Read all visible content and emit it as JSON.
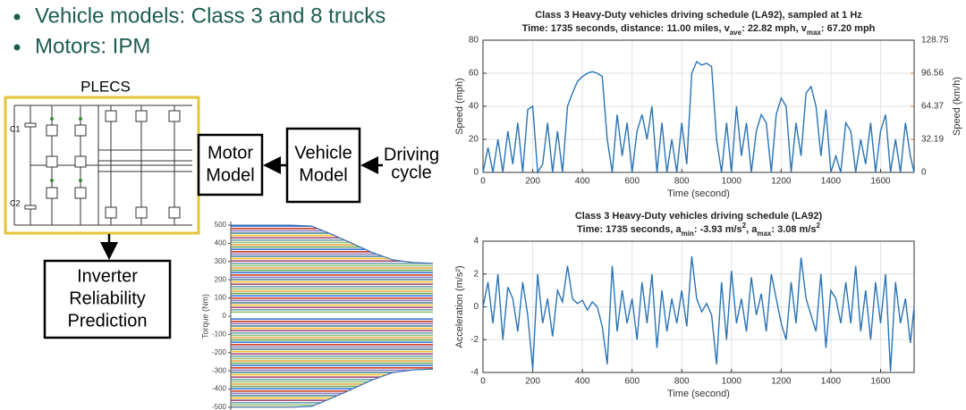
{
  "bullets": [
    "Vehicle models: Class 3 and 8 trucks",
    "Motors: IPM"
  ],
  "diagram": {
    "plecs": {
      "label": "PLECS",
      "components": [
        "C1",
        "C2"
      ]
    },
    "nodes": [
      {
        "lines": [
          "Motor",
          "Model"
        ]
      },
      {
        "lines": [
          "Vehicle",
          "Model"
        ]
      },
      {
        "lines": [
          "Driving",
          "cycle"
        ]
      },
      {
        "lines": [
          "Inverter",
          "Reliability",
          "Prediction"
        ]
      }
    ]
  },
  "chart_data": [
    {
      "type": "area",
      "ylabel": "Torque (Nm)",
      "categories": [
        null,
        null,
        null,
        null,
        null,
        null,
        null,
        null,
        null,
        null,
        null
      ],
      "series": [
        {
          "color": "#3b6fb0",
          "values": [
            500,
            500,
            500,
            500,
            495,
            450,
            400,
            350,
            310,
            295,
            290
          ]
        },
        {
          "color": "#3b6fb0",
          "values": [
            -500,
            -500,
            -500,
            -500,
            -495,
            -450,
            -400,
            -350,
            -310,
            -295,
            -290
          ]
        }
      ],
      "stripe_colors": [
        "#e8a33d",
        "#6aa84f",
        "#3c78d8",
        "#cc4125",
        "#8e7cc3",
        "#45818e",
        "#f1c232",
        "#a64d79",
        "#76a5af",
        "#93c47d"
      ],
      "ylim": [
        -520,
        520
      ],
      "yticks": [
        -500,
        -400,
        -300,
        -200,
        -100,
        0,
        100,
        200,
        300,
        400,
        500
      ]
    },
    {
      "type": "line",
      "title": "Class 3 Heavy-Duty vehicles driving schedule (LA92), sampled at 1 Hz",
      "subtitle": [
        "Time: 1735 seconds, distance: 11.00 miles, v",
        {
          "text": "ave",
          "script": "sub"
        },
        ": 22.82 mph, v",
        {
          "text": "max",
          "script": "sub"
        },
        ": 67.20 mph"
      ],
      "xlabel": "Time (second)",
      "ylabel": "Speed (mph)",
      "y2label": "Speed (km/h)",
      "y2color": "#d9793a",
      "x": [
        0,
        20,
        40,
        60,
        80,
        100,
        120,
        140,
        160,
        180,
        200,
        220,
        240,
        260,
        280,
        300,
        320,
        340,
        360,
        380,
        400,
        420,
        440,
        460,
        480,
        500,
        520,
        540,
        560,
        580,
        600,
        620,
        640,
        660,
        680,
        700,
        720,
        740,
        760,
        780,
        800,
        820,
        840,
        860,
        880,
        900,
        920,
        940,
        960,
        980,
        1000,
        1020,
        1040,
        1060,
        1080,
        1100,
        1120,
        1140,
        1160,
        1180,
        1200,
        1220,
        1240,
        1260,
        1280,
        1300,
        1320,
        1340,
        1360,
        1380,
        1400,
        1420,
        1440,
        1460,
        1480,
        1500,
        1520,
        1540,
        1560,
        1580,
        1600,
        1620,
        1640,
        1660,
        1680,
        1700,
        1720,
        1735
      ],
      "series": [
        {
          "color": "#2a74b5",
          "values": [
            0,
            15,
            0,
            20,
            0,
            25,
            5,
            30,
            0,
            38,
            40,
            0,
            5,
            30,
            0,
            25,
            0,
            40,
            48,
            55,
            58,
            60,
            61,
            60,
            58,
            20,
            0,
            35,
            10,
            30,
            0,
            25,
            35,
            20,
            40,
            0,
            30,
            0,
            20,
            0,
            30,
            5,
            60,
            67,
            65,
            66,
            64,
            20,
            0,
            30,
            0,
            40,
            10,
            30,
            0,
            25,
            35,
            30,
            0,
            35,
            45,
            40,
            0,
            30,
            10,
            48,
            52,
            40,
            10,
            38,
            0,
            10,
            0,
            30,
            25,
            0,
            20,
            5,
            30,
            0,
            25,
            35,
            0,
            20,
            0,
            30,
            10,
            0
          ]
        }
      ],
      "xlim": [
        0,
        1735
      ],
      "xticks": [
        0,
        200,
        400,
        600,
        800,
        1000,
        1200,
        1400,
        1600
      ],
      "ylim": [
        0,
        80
      ],
      "yticks": [
        0,
        20,
        40,
        60,
        80
      ],
      "y2lim": [
        0,
        128.75
      ],
      "y2ticks": [
        0,
        32.19,
        64.37,
        96.56,
        128.75
      ],
      "grid": true
    },
    {
      "type": "line",
      "title": "Class 3 Heavy-Duty vehicles driving schedule (LA92)",
      "subtitle": [
        "Time: 1735 seconds, a",
        {
          "text": "min",
          "script": "sub"
        },
        ": -3.93 m/s",
        {
          "text": "2",
          "script": "super"
        },
        ", a",
        {
          "text": "max",
          "script": "sub"
        },
        ": 3.08 m/s",
        {
          "text": "2",
          "script": "super"
        }
      ],
      "xlabel": "Time (second)",
      "ylabel": "Acceleration (m/s²)",
      "x": [
        0,
        20,
        40,
        60,
        80,
        100,
        120,
        140,
        160,
        180,
        200,
        220,
        240,
        260,
        280,
        300,
        320,
        340,
        360,
        380,
        400,
        420,
        440,
        460,
        480,
        500,
        520,
        540,
        560,
        580,
        600,
        620,
        640,
        660,
        680,
        700,
        720,
        740,
        760,
        780,
        800,
        820,
        840,
        860,
        880,
        900,
        920,
        940,
        960,
        980,
        1000,
        1020,
        1040,
        1060,
        1080,
        1100,
        1120,
        1140,
        1160,
        1180,
        1200,
        1220,
        1240,
        1260,
        1280,
        1300,
        1320,
        1340,
        1360,
        1380,
        1400,
        1420,
        1440,
        1460,
        1480,
        1500,
        1520,
        1540,
        1560,
        1580,
        1600,
        1620,
        1640,
        1660,
        1680,
        1700,
        1720,
        1735
      ],
      "series": [
        {
          "color": "#2a74b5",
          "values": [
            0,
            1.5,
            -1,
            2,
            -2,
            1.2,
            0.5,
            -1.5,
            1.5,
            -0.5,
            -3.8,
            2,
            -1,
            0.5,
            -1.8,
            1,
            0.3,
            2.5,
            0.5,
            0.2,
            0.4,
            -0.2,
            0.3,
            0,
            -1.2,
            -3.5,
            2.5,
            -1.5,
            1,
            -1,
            0.5,
            -2,
            1.5,
            -1,
            2,
            -2.5,
            1,
            -1.5,
            0.5,
            -1,
            1,
            -1.2,
            3.08,
            0.5,
            -0.3,
            0.2,
            -0.5,
            -3.5,
            1.5,
            -2,
            2.2,
            -1,
            0.5,
            -1.5,
            1.8,
            -0.5,
            0.8,
            -1.5,
            2,
            0.5,
            -1,
            -2,
            1.5,
            -1,
            3,
            0.5,
            -0.5,
            -1.5,
            2,
            -2.5,
            1,
            0.5,
            -1,
            1.5,
            -1,
            2.5,
            -1.5,
            1,
            -2,
            1.5,
            -1,
            2,
            -3.93,
            1.5,
            -1,
            0.5,
            -2.2,
            0
          ]
        }
      ],
      "xlim": [
        0,
        1735
      ],
      "xticks": [
        0,
        200,
        400,
        600,
        800,
        1000,
        1200,
        1400,
        1600
      ],
      "ylim": [
        -4,
        4
      ],
      "yticks": [
        -4,
        -2,
        0,
        2,
        4
      ],
      "grid": true
    }
  ]
}
